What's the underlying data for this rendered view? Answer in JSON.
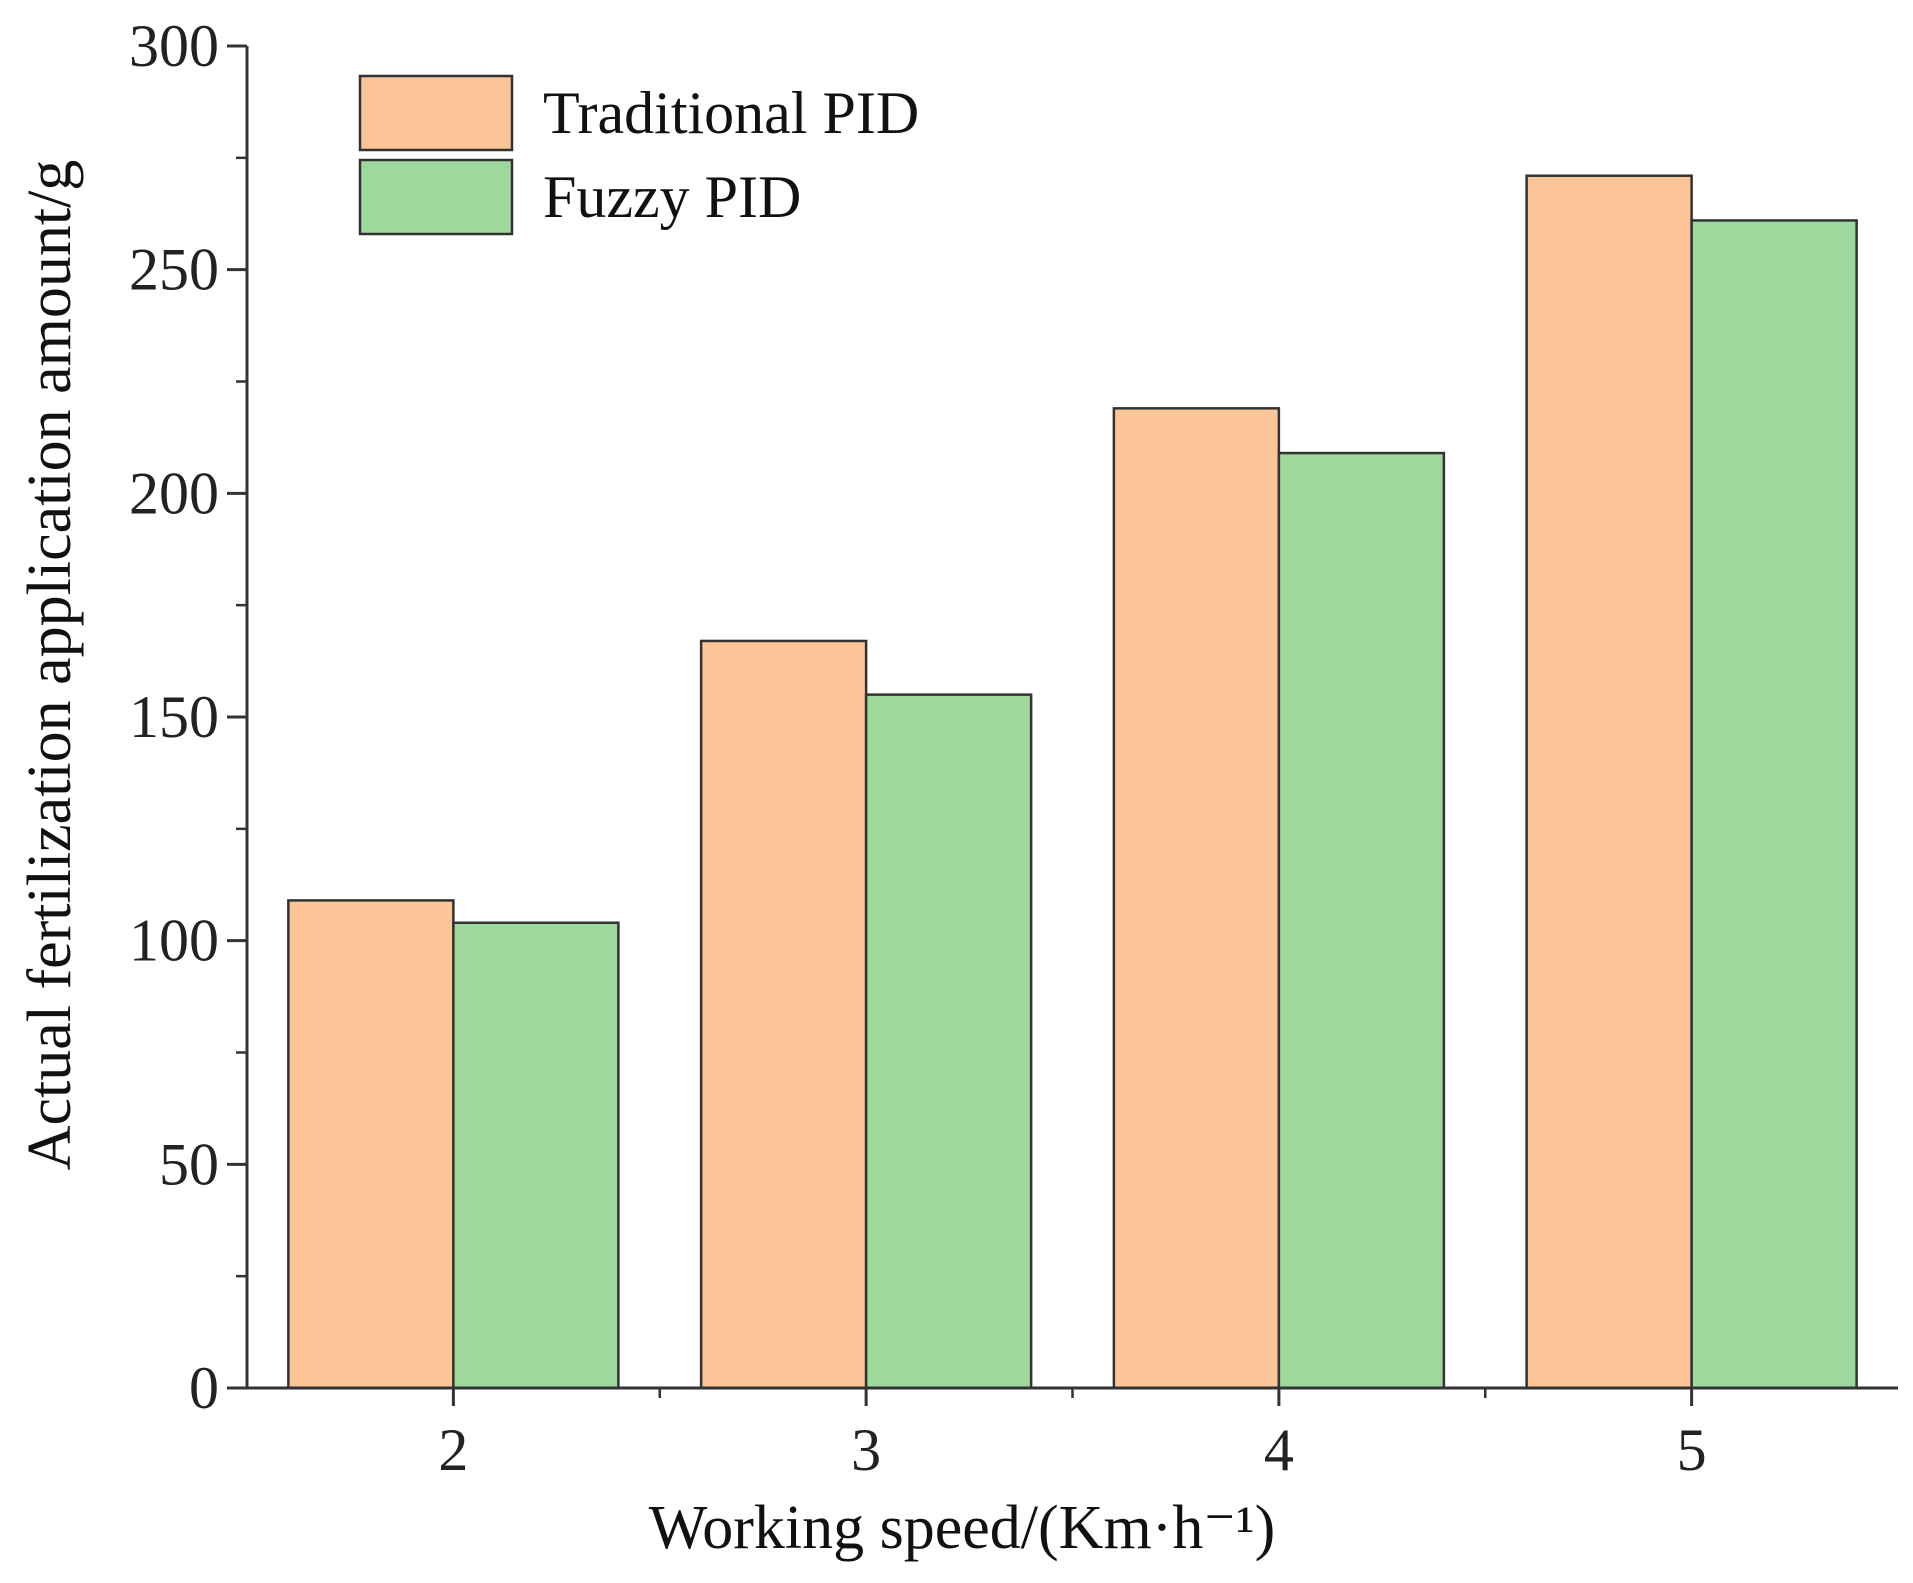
{
  "chart_data": {
    "type": "bar",
    "categories": [
      "2",
      "3",
      "4",
      "5"
    ],
    "series": [
      {
        "name": "Traditional PID",
        "values": [
          109,
          167,
          219,
          271
        ],
        "color": "#FBC597"
      },
      {
        "name": "Fuzzy PID",
        "values": [
          104,
          155,
          209,
          261
        ],
        "color": "#9FD89C"
      }
    ],
    "title": "",
    "xlabel": "Working speed/(Km·h⁻¹)",
    "ylabel": "Actual fertilization application amount/g",
    "ylim": [
      0,
      300
    ],
    "yticks": [
      "0",
      "50",
      "100",
      "150",
      "200",
      "250",
      "300"
    ],
    "grid": false,
    "legend_position": "top-left"
  }
}
